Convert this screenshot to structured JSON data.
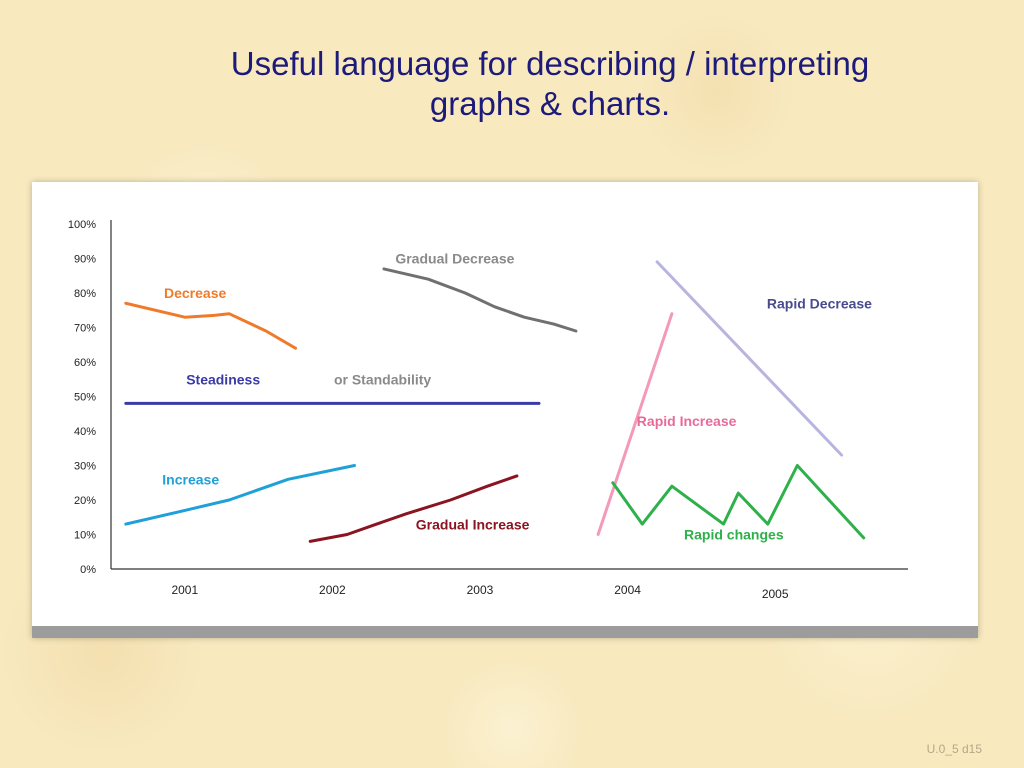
{
  "slide": {
    "title_line1": "Useful language for describing / interpreting",
    "title_line2": "graphs & charts.",
    "footer": "U.0_5 d15"
  },
  "chart_data": {
    "type": "line",
    "ylim": [
      0,
      100
    ],
    "y_ticks": [
      "0%",
      "10%",
      "20%",
      "30%",
      "40%",
      "50%",
      "60%",
      "70%",
      "80%",
      "90%",
      "100%"
    ],
    "y_tick_values": [
      0,
      10,
      20,
      30,
      40,
      50,
      60,
      70,
      80,
      90,
      100
    ],
    "xlim": [
      2000.5,
      2005.9
    ],
    "x_ticks": [
      "2001",
      "2002",
      "2003",
      "2004",
      "2005"
    ],
    "x_tick_values": [
      2001,
      2002,
      2003,
      2004,
      2005
    ],
    "grid": false,
    "series": [
      {
        "name": "Decrease",
        "color": "#f07a2a",
        "x": [
          2000.6,
          2001.0,
          2001.2,
          2001.3,
          2001.55,
          2001.75
        ],
        "y": [
          77,
          73,
          73.5,
          74,
          69,
          64
        ]
      },
      {
        "name": "Steadiness or Standability",
        "color": "#3a3aa8",
        "x": [
          2000.6,
          2003.4
        ],
        "y": [
          48,
          48
        ]
      },
      {
        "name": "Increase",
        "color": "#1fa0d8",
        "x": [
          2000.6,
          2001.0,
          2001.3,
          2001.7,
          2002.15
        ],
        "y": [
          13,
          17,
          20,
          26,
          30
        ]
      },
      {
        "name": "Gradual Decrease",
        "color": "#707070",
        "x": [
          2002.35,
          2002.65,
          2002.9,
          2003.1,
          2003.3,
          2003.5,
          2003.65
        ],
        "y": [
          87,
          84,
          80,
          76,
          73,
          71,
          69
        ]
      },
      {
        "name": "Gradual Increase",
        "color": "#8a1420",
        "x": [
          2001.85,
          2002.1,
          2002.3,
          2002.5,
          2002.8,
          2003.05,
          2003.25
        ],
        "y": [
          8,
          10,
          13,
          16,
          20,
          24,
          27
        ]
      },
      {
        "name": "Rapid Increase",
        "color": "#f39ab8",
        "x": [
          2003.8,
          2004.3
        ],
        "y": [
          10,
          74
        ]
      },
      {
        "name": "Rapid Decrease",
        "color": "#b8b4e0",
        "x": [
          2004.2,
          2005.45
        ],
        "y": [
          89,
          33
        ]
      },
      {
        "name": "Rapid changes",
        "color": "#2eb04a",
        "x": [
          2003.9,
          2004.1,
          2004.3,
          2004.65,
          2004.75,
          2004.95,
          2005.15,
          2005.6
        ],
        "y": [
          25,
          13,
          24,
          13,
          22,
          13,
          30,
          9
        ]
      }
    ],
    "annotations": [
      {
        "text": "Decrease",
        "x": 2001.07,
        "y": 78.5,
        "color": "#f07a2a"
      },
      {
        "text": "Steadiness",
        "x": 2001.26,
        "y": 53.5,
        "color": "#3a3aa8"
      },
      {
        "text": "or Standability",
        "x": 2002.34,
        "y": 53.5,
        "color": "#8a8a8a"
      },
      {
        "text": "Increase",
        "x": 2001.04,
        "y": 24.5,
        "color": "#1fa0d8"
      },
      {
        "text": "Gradual Decrease",
        "x": 2002.83,
        "y": 88.5,
        "color": "#8a8a8a"
      },
      {
        "text": "Gradual Increase",
        "x": 2002.95,
        "y": 11.5,
        "color": "#8a1420"
      },
      {
        "text": "Rapid Increase",
        "x": 2004.4,
        "y": 41.5,
        "color": "#e86a9a"
      },
      {
        "text": "Rapid Decrease",
        "x": 2005.3,
        "y": 75.5,
        "color": "#4a4a90"
      },
      {
        "text": "Rapid changes",
        "x": 2004.72,
        "y": 8.5,
        "color": "#2eb04a"
      }
    ]
  }
}
